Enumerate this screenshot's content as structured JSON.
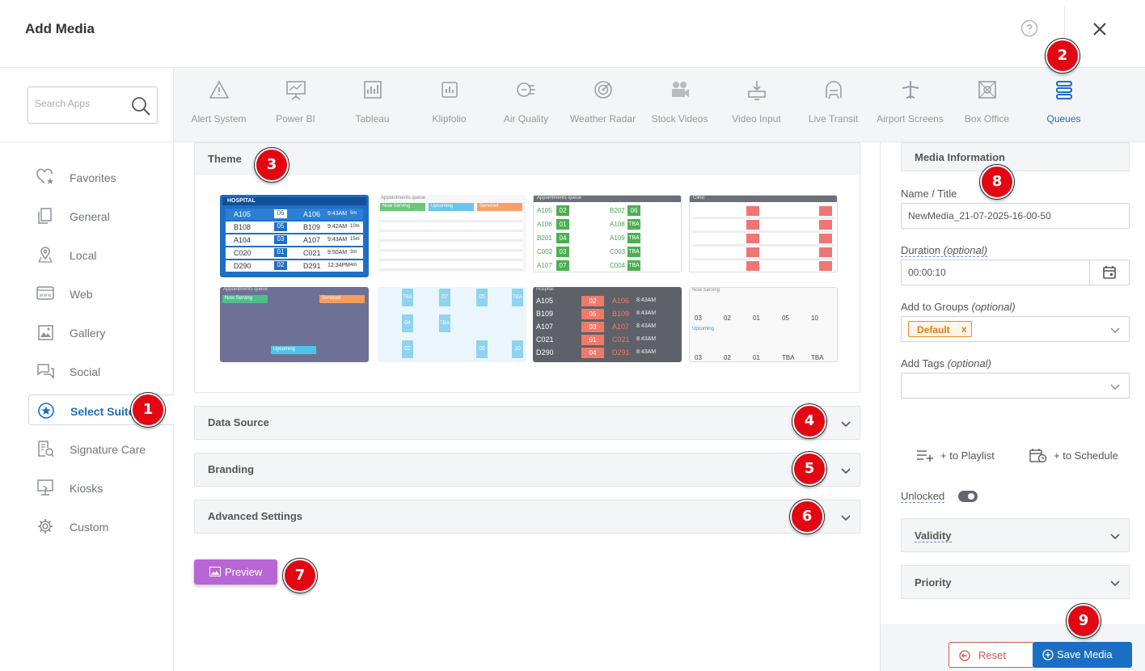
{
  "header": {
    "title": "Add Media"
  },
  "search": {
    "placeholder": "Search Apps"
  },
  "apps": [
    {
      "label": "Alert System",
      "icon": "alert-icon"
    },
    {
      "label": "Power BI",
      "icon": "presentation-chart-icon"
    },
    {
      "label": "Tableau",
      "icon": "chart-board-icon"
    },
    {
      "label": "Klipfolio",
      "icon": "bar-chart-icon"
    },
    {
      "label": "Air Quality",
      "icon": "air-quality-icon"
    },
    {
      "label": "Weather Radar",
      "icon": "radar-icon"
    },
    {
      "label": "Stock Videos",
      "icon": "video-camera-icon"
    },
    {
      "label": "Video Input",
      "icon": "video-input-icon"
    },
    {
      "label": "Live Transit",
      "icon": "transit-icon"
    },
    {
      "label": "Airport Screens",
      "icon": "airplane-icon"
    },
    {
      "label": "Box Office",
      "icon": "film-icon"
    },
    {
      "label": "Queues",
      "icon": "queues-icon"
    }
  ],
  "sidebar": {
    "items": [
      {
        "label": "Favorites",
        "icon": "heart-star-icon"
      },
      {
        "label": "General",
        "icon": "document-copy-icon"
      },
      {
        "label": "Local",
        "icon": "map-pin-icon"
      },
      {
        "label": "Web",
        "icon": "www-icon"
      },
      {
        "label": "Gallery",
        "icon": "image-icon"
      },
      {
        "label": "Social",
        "icon": "chat-icon"
      },
      {
        "label": "Select Suite",
        "icon": "star-circle-icon"
      },
      {
        "label": "Signature Care",
        "icon": "care-doc-icon"
      },
      {
        "label": "Kiosks",
        "icon": "kiosk-icon"
      },
      {
        "label": "Custom",
        "icon": "gear-icon"
      }
    ]
  },
  "main": {
    "theme_title": "Theme",
    "sections": [
      "Data Source",
      "Branding",
      "Advanced Settings"
    ],
    "preview_label": "Preview"
  },
  "thumbnails": {
    "t1": {
      "header": "HOSPITAL",
      "rows": [
        [
          "A105",
          "06",
          "A106",
          "9:43AM",
          "5m"
        ],
        [
          "B108",
          "05",
          "B109",
          "9:42AM",
          "10m"
        ],
        [
          "A104",
          "03",
          "A107",
          "9:43AM",
          "15m"
        ],
        [
          "C020",
          "01",
          "C021",
          "9:50AM",
          "3m"
        ],
        [
          "D290",
          "02",
          "D291",
          "12:34PM",
          "4m"
        ]
      ]
    },
    "t2": {
      "header": "Appointments queue",
      "cols": [
        "Now Serving",
        "Upcoming",
        "Serviced"
      ]
    },
    "t3": {
      "header": "Appointments queue",
      "rows": [
        [
          "A105",
          "02",
          "B202",
          "06"
        ],
        [
          "A106",
          "01",
          "A108",
          "TBA"
        ],
        [
          "B201",
          "04",
          "A109",
          "TBA"
        ],
        [
          "C002",
          "03",
          "C003",
          "TBA"
        ],
        [
          "A107",
          "07",
          "C004",
          "TBA"
        ]
      ]
    },
    "t4": {
      "header": "Clinic"
    },
    "t5": {
      "header": "Appointments queue",
      "cols": [
        "Now Serving",
        "Upcoming",
        "Serviced"
      ]
    },
    "t6": {
      "cells": [
        "TBA",
        "07",
        "05",
        "TBA",
        "04",
        "TBA",
        "02",
        "06",
        "10"
      ]
    },
    "t7": {
      "header": "Hospital",
      "rows": [
        [
          "A105",
          "02",
          "A106",
          "8:43AM"
        ],
        [
          "B109",
          "05",
          "B109",
          "8:43AM"
        ],
        [
          "A107",
          "03",
          "A107",
          "8:43AM"
        ],
        [
          "C021",
          "01",
          "C021",
          "8:43AM"
        ],
        [
          "D290",
          "04",
          "D291",
          "8:43AM"
        ]
      ]
    },
    "t8": {
      "header": "Now Serving",
      "sub": "Upcoming",
      "nums": [
        "03",
        "02",
        "01",
        "05",
        "10",
        "03",
        "02",
        "01",
        "TBA",
        "TBA"
      ]
    }
  },
  "media_info": {
    "title": "Media Information",
    "name_label": "Name / Title",
    "name_value": "NewMedia_21-07-2025-16-00-50",
    "duration_label": "Duration",
    "duration_optional": "(optional)",
    "duration_value": "00:00:10",
    "groups_label": "Add to Groups",
    "groups_optional": "(optional)",
    "group_tag": "Default",
    "group_tag_remove": "x",
    "tags_label": "Add Tags",
    "tags_optional": "(optional)",
    "to_playlist": "+ to Playlist",
    "to_schedule": "+ to Schedule",
    "unlocked_label": "Unlocked",
    "unlocked_on": false,
    "validity_label": "Validity",
    "priority_label": "Priority",
    "reset_label": "Reset",
    "save_label": "Save Media"
  },
  "badges": [
    "1",
    "2",
    "3",
    "4",
    "5",
    "6",
    "7",
    "8",
    "9"
  ],
  "colors": {
    "accent": "#1b6ec2",
    "preview": "#b866d6",
    "badge": "#e30613",
    "reset": "#d9534f",
    "tag": "#e07b18"
  }
}
